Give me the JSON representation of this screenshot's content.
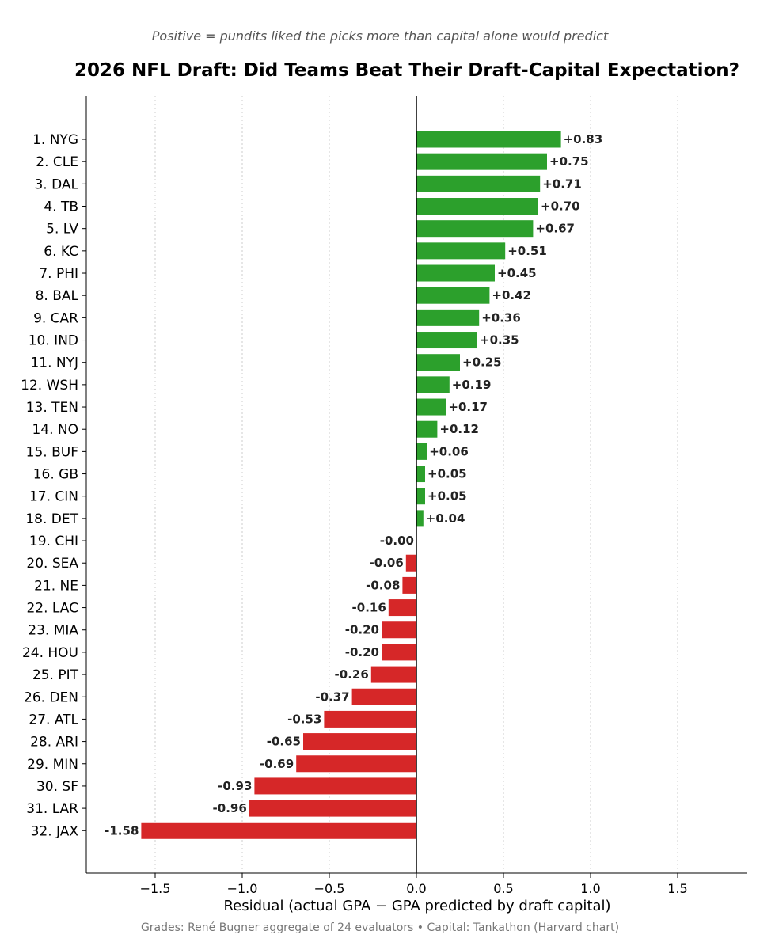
{
  "subtitle": "Positive = pundits liked the picks more than capital alone would predict",
  "source": "Grades: René Bugner aggregate of 24 evaluators  •  Capital: Tankathon (Harvard chart)",
  "colors": {
    "positive": "#2ca02c",
    "negative": "#d62728",
    "grid": "#cccccc",
    "axis": "#000000"
  },
  "chart_data": {
    "type": "bar",
    "orientation": "horizontal",
    "title": "2026 NFL Draft: Did Teams Beat Their Draft-Capital Expectation?",
    "xlabel": "Residual (actual GPA − GPA predicted by draft capital)",
    "ylabel": "",
    "xlim": [
      -1.9,
      1.9
    ],
    "xticks": [
      -1.5,
      -1.0,
      -0.5,
      0.0,
      0.5,
      1.0,
      1.5
    ],
    "xtick_labels": [
      "−1.5",
      "−1.0",
      "−0.5",
      "0.0",
      "0.5",
      "1.0",
      "1.5"
    ],
    "grid": "vertical dotted",
    "categories": [
      "1. NYG",
      "2. CLE",
      "3. DAL",
      "4. TB",
      "5. LV",
      "6. KC",
      "7. PHI",
      "8. BAL",
      "9. CAR",
      "10. IND",
      "11. NYJ",
      "12. WSH",
      "13. TEN",
      "14. NO",
      "15. BUF",
      "16. GB",
      "17. CIN",
      "18. DET",
      "19. CHI",
      "20. SEA",
      "21. NE",
      "22. LAC",
      "23. MIA",
      "24. HOU",
      "25. PIT",
      "26. DEN",
      "27. ATL",
      "28. ARI",
      "29. MIN",
      "30. SF",
      "31. LAR",
      "32. JAX"
    ],
    "values": [
      0.83,
      0.75,
      0.71,
      0.7,
      0.67,
      0.51,
      0.45,
      0.42,
      0.36,
      0.35,
      0.25,
      0.19,
      0.17,
      0.12,
      0.06,
      0.05,
      0.05,
      0.04,
      -0.0,
      -0.06,
      -0.08,
      -0.16,
      -0.2,
      -0.2,
      -0.26,
      -0.37,
      -0.53,
      -0.65,
      -0.69,
      -0.93,
      -0.96,
      -1.58
    ],
    "value_labels": [
      "+0.83",
      "+0.75",
      "+0.71",
      "+0.70",
      "+0.67",
      "+0.51",
      "+0.45",
      "+0.42",
      "+0.36",
      "+0.35",
      "+0.25",
      "+0.19",
      "+0.17",
      "+0.12",
      "+0.06",
      "+0.05",
      "+0.05",
      "+0.04",
      "-0.00",
      "-0.06",
      "-0.08",
      "-0.16",
      "-0.20",
      "-0.20",
      "-0.26",
      "-0.37",
      "-0.53",
      "-0.65",
      "-0.69",
      "-0.93",
      "-0.96",
      "-1.58"
    ]
  }
}
